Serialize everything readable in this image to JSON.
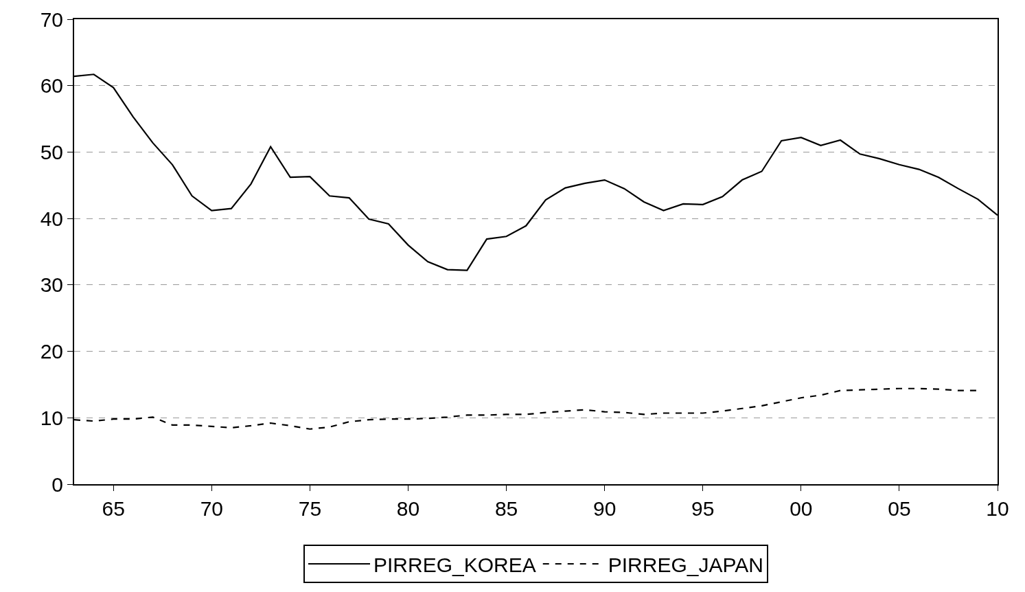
{
  "chart_data": {
    "type": "line",
    "x": [
      1963,
      1964,
      1965,
      1966,
      1967,
      1968,
      1969,
      1970,
      1971,
      1972,
      1973,
      1974,
      1975,
      1976,
      1977,
      1978,
      1979,
      1980,
      1981,
      1982,
      1983,
      1984,
      1985,
      1986,
      1987,
      1988,
      1989,
      1990,
      1991,
      1992,
      1993,
      1994,
      1995,
      1996,
      1997,
      1998,
      1999,
      2000,
      2001,
      2002,
      2003,
      2004,
      2005,
      2006,
      2007,
      2008,
      2009,
      2010
    ],
    "series": [
      {
        "name": "PIRREG_KOREA",
        "color": "#000000",
        "line_style": "solid",
        "values": [
          61.4,
          61.7,
          59.7,
          55.3,
          51.4,
          48.1,
          43.4,
          41.2,
          41.5,
          45.2,
          50.8,
          46.2,
          46.3,
          43.4,
          43.1,
          39.9,
          39.2,
          36.0,
          33.5,
          32.3,
          32.2,
          36.9,
          37.3,
          38.9,
          42.8,
          44.6,
          45.3,
          45.8,
          44.5,
          42.5,
          41.2,
          42.2,
          42.1,
          43.3,
          45.8,
          47.1,
          51.7,
          52.2,
          51.0,
          51.8,
          49.7,
          49.0,
          48.1,
          47.4,
          46.2,
          44.5,
          42.9,
          40.5
        ]
      },
      {
        "name": "PIRREG_JAPAN",
        "color": "#000000",
        "line_style": "dashed",
        "values": [
          9.7,
          9.5,
          9.8,
          9.8,
          10.1,
          8.9,
          8.9,
          8.7,
          8.5,
          8.8,
          9.2,
          8.8,
          8.3,
          8.6,
          9.4,
          9.7,
          9.8,
          9.8,
          9.9,
          10.1,
          10.4,
          10.4,
          10.5,
          10.5,
          10.8,
          11.0,
          11.2,
          10.9,
          10.8,
          10.5,
          10.7,
          10.7,
          10.7,
          11.0,
          11.4,
          11.8,
          12.4,
          13.0,
          13.4,
          14.1,
          14.2,
          14.3,
          14.4,
          14.4,
          14.3,
          14.1,
          14.1,
          null
        ]
      }
    ],
    "xlim": [
      1963,
      2010
    ],
    "xticks": [
      {
        "value": 1965,
        "label": "65"
      },
      {
        "value": 1970,
        "label": "70"
      },
      {
        "value": 1975,
        "label": "75"
      },
      {
        "value": 1980,
        "label": "80"
      },
      {
        "value": 1985,
        "label": "85"
      },
      {
        "value": 1990,
        "label": "90"
      },
      {
        "value": 1995,
        "label": "95"
      },
      {
        "value": 2000,
        "label": "00"
      },
      {
        "value": 2005,
        "label": "05"
      },
      {
        "value": 2010,
        "label": "10"
      }
    ],
    "ylim": [
      0,
      70
    ],
    "yticks": [
      0,
      10,
      20,
      30,
      40,
      50,
      60,
      70
    ],
    "grid": "y",
    "legend": "bottom",
    "marker": "none"
  }
}
